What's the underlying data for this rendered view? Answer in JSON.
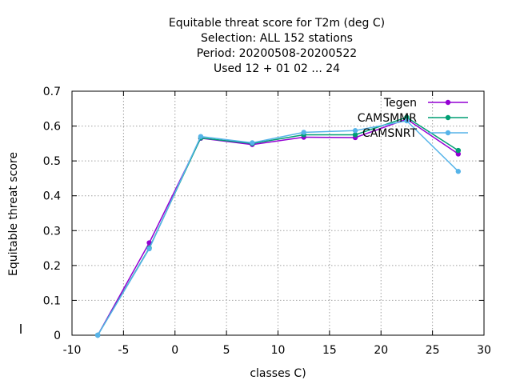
{
  "chart_data": {
    "type": "line",
    "title": [
      "Equitable threat score  for T2m (deg C)",
      "Selection: ALL    152 stations",
      "Period: 20200508-20200522",
      "Used  12 + 01 02 ... 24"
    ],
    "xlabel": "classes C)",
    "ylabel": "Equitable threat score",
    "xlim": [
      -10,
      30
    ],
    "ylim": [
      0,
      0.7
    ],
    "xticks": [
      -10,
      -5,
      0,
      5,
      10,
      15,
      20,
      25,
      30
    ],
    "xtick_labels": [
      "-10",
      "-5",
      "0",
      "5",
      "10",
      "15",
      "20",
      "25",
      "30"
    ],
    "yticks": [
      0,
      0.1,
      0.2,
      0.3,
      0.4,
      0.5,
      0.6,
      0.7
    ],
    "ytick_labels": [
      "0",
      "0.1",
      "0.2",
      "0.3",
      "0.4",
      "0.5",
      "0.6",
      "0.7"
    ],
    "grid": true,
    "legend_position": "top-right",
    "x": [
      -7.5,
      -2.5,
      2.5,
      7.5,
      12.5,
      17.5,
      22.5,
      27.5
    ],
    "series": [
      {
        "name": "Tegen",
        "color": "#9400d3",
        "values": [
          0.0,
          0.265,
          0.565,
          0.547,
          0.568,
          0.567,
          0.62,
          0.52
        ]
      },
      {
        "name": "CAMSMMR",
        "color": "#009e73",
        "values": [
          0.0,
          0.25,
          0.566,
          0.55,
          0.575,
          0.575,
          0.625,
          0.53
        ]
      },
      {
        "name": "CAMSNRT",
        "color": "#56b4e9",
        "values": [
          0.0,
          0.248,
          0.57,
          0.552,
          0.582,
          0.587,
          0.615,
          0.47
        ]
      }
    ]
  }
}
